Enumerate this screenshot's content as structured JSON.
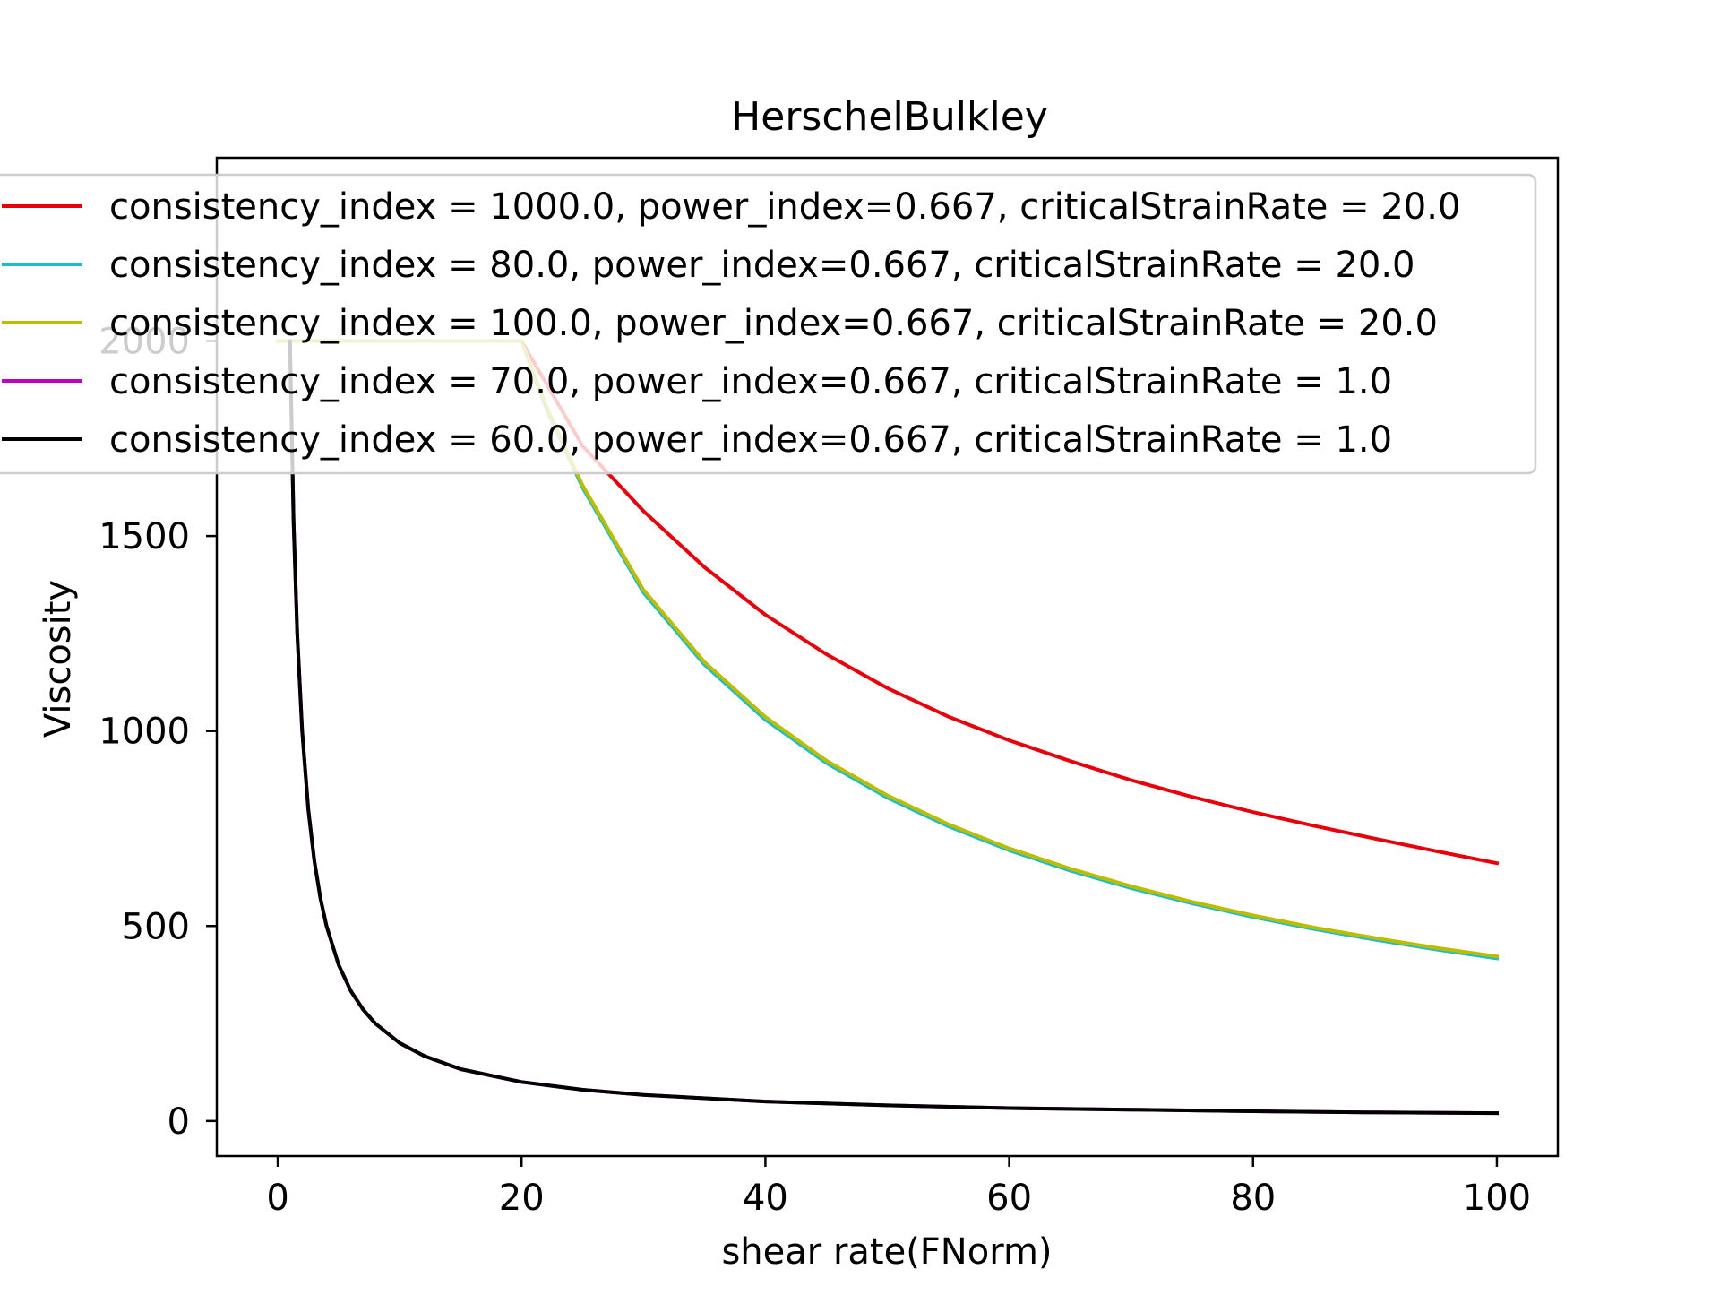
{
  "chart_data": {
    "type": "line",
    "title": "HerschelBulkley",
    "xlabel": "shear rate(FNorm)",
    "ylabel": "Viscosity",
    "xlim": [
      -5,
      105
    ],
    "ylim": [
      -90,
      2470
    ],
    "xticks": [
      0,
      20,
      40,
      60,
      80,
      100
    ],
    "yticks": [
      0,
      500,
      1000,
      1500,
      2000
    ],
    "xtick_labels": [
      "0",
      "20",
      "40",
      "60",
      "80",
      "100"
    ],
    "ytick_labels": [
      "0",
      "500",
      "1000",
      "1500",
      "2000"
    ],
    "grid": false,
    "legend_position": "top-left",
    "series": [
      {
        "name": "consistency_index = 1000.0, power_index=0.667, criticalStrainRate = 20.0",
        "color": "#e8000b",
        "x": [
          0,
          20,
          25,
          30,
          35,
          40,
          45,
          50,
          55,
          60,
          65,
          70,
          75,
          80,
          85,
          90,
          95,
          100
        ],
        "y": [
          2000,
          2000,
          1731,
          1564,
          1420,
          1298,
          1197,
          1110,
          1037,
          976,
          923,
          874,
          831,
          792,
          757,
          724,
          692,
          661
        ]
      },
      {
        "name": "consistency_index = 80.0, power_index=0.667, criticalStrainRate = 20.0",
        "color": "#17becf",
        "x": [
          0,
          20,
          22,
          25,
          30,
          35,
          40,
          45,
          50,
          55,
          60,
          65,
          70,
          75,
          80,
          85,
          90,
          95,
          100
        ],
        "y": [
          2000,
          2000,
          1830,
          1624,
          1355,
          1170,
          1029,
          918,
          829,
          756,
          694,
          642,
          597,
          558,
          523,
          492,
          465,
          440,
          417
        ]
      },
      {
        "name": "consistency_index = 100.0, power_index=0.667, criticalStrainRate = 20.0",
        "color": "#bcbd00",
        "x": [
          0,
          20,
          22,
          25,
          30,
          35,
          40,
          45,
          50,
          55,
          60,
          65,
          70,
          75,
          80,
          85,
          90,
          95,
          100
        ],
        "y": [
          2000,
          2000,
          1835,
          1630,
          1362,
          1177,
          1036,
          924,
          835,
          761,
          699,
          647,
          602,
          562,
          527,
          496,
          469,
          444,
          422
        ]
      },
      {
        "name": "consistency_index = 70.0, power_index=0.667, criticalStrainRate = 1.0",
        "color": "#bf00bf",
        "x": [
          1,
          1.3,
          1.6,
          2,
          2.5,
          3,
          3.5,
          4,
          5,
          6,
          7,
          8,
          10,
          12,
          15,
          20,
          25,
          30,
          40,
          50,
          60,
          70,
          80,
          90,
          100
        ],
        "y": [
          2000,
          1538,
          1250,
          1000,
          800,
          667,
          571,
          500,
          400,
          333,
          286,
          250,
          200,
          167,
          133,
          100,
          80,
          67,
          50,
          40,
          33,
          29,
          25,
          22,
          20
        ]
      },
      {
        "name": "consistency_index = 60.0, power_index=0.667, criticalStrainRate = 1.0",
        "color": "#000000",
        "x": [
          1,
          1.3,
          1.6,
          2,
          2.5,
          3,
          3.5,
          4,
          5,
          6,
          7,
          8,
          10,
          12,
          15,
          20,
          25,
          30,
          40,
          50,
          60,
          70,
          80,
          90,
          100
        ],
        "y": [
          2000,
          1538,
          1250,
          1000,
          800,
          667,
          571,
          500,
          400,
          333,
          286,
          250,
          200,
          167,
          133,
          100,
          80,
          67,
          50,
          40,
          33,
          29,
          25,
          22,
          20
        ]
      }
    ]
  }
}
